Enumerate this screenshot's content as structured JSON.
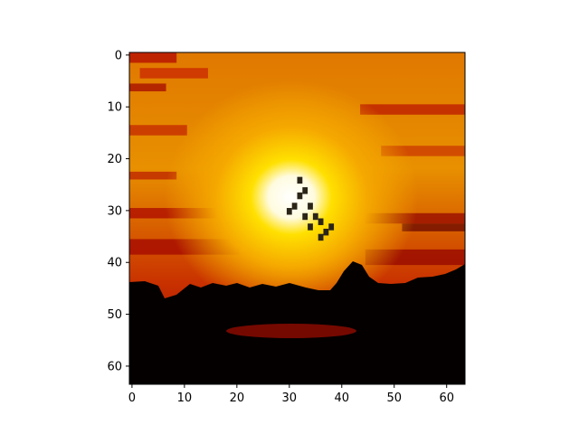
{
  "chart_data": {
    "type": "heatmap",
    "colormap": "hot",
    "grid": false,
    "xlim": [
      -0.5,
      63.5
    ],
    "ylim": [
      63.5,
      -0.5
    ],
    "x_ticks": [
      0,
      10,
      20,
      30,
      40,
      50,
      60
    ],
    "y_ticks": [
      0,
      10,
      20,
      30,
      40,
      50,
      60
    ],
    "x_tick_labels": [
      "0",
      "10",
      "20",
      "30",
      "40",
      "50",
      "60"
    ],
    "y_tick_labels": [
      "0",
      "10",
      "20",
      "30",
      "40",
      "50",
      "60"
    ],
    "image_size": [
      64,
      64
    ],
    "sun_center": [
      31,
      28
    ],
    "silhouette_top_row": 44,
    "bird_pixels": [
      [
        32,
        24
      ],
      [
        33,
        26
      ],
      [
        32,
        27
      ],
      [
        34,
        29
      ],
      [
        35,
        31
      ],
      [
        36,
        32
      ],
      [
        37,
        34
      ],
      [
        31,
        29
      ],
      [
        30,
        30
      ],
      [
        33,
        31
      ],
      [
        34,
        33
      ],
      [
        38,
        33
      ],
      [
        36,
        35
      ]
    ]
  }
}
